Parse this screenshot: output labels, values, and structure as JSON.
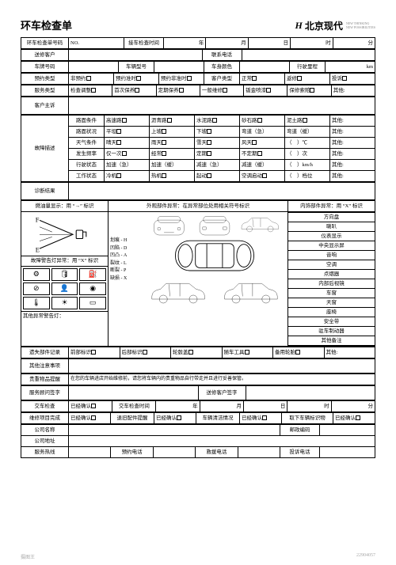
{
  "header": {
    "title": "环车检查单",
    "brand_cn": "北京现代",
    "brand_sub1": "NEW THINKING",
    "brand_sub2": "NEW POSSIBILITIES"
  },
  "r1": {
    "label": "环车检查单号码",
    "no": "NO.",
    "recv": "接车检查时间",
    "y": "年",
    "m": "月",
    "d": "日",
    "h": "时",
    "min": "分"
  },
  "r2": {
    "cust": "送修客户",
    "phone": "联系电话"
  },
  "r3": {
    "plate": "车牌号码",
    "model": "车辆型号",
    "color": "车身颜色",
    "mile": "行驶里程",
    "km": "km"
  },
  "r4": {
    "type": "预约类型",
    "o1": "非预约",
    "o2": "预约准时",
    "o3": "预约非准时",
    "o4": "客户类型",
    "o5": "正常",
    "o6": "返修",
    "o7": "投诉"
  },
  "r5": {
    "svc": "服务类型",
    "o1": "检查调整",
    "o2": "首次保养",
    "o3": "定期保养",
    "o4": "一般维修",
    "o5": "钣金喷漆",
    "o6": "保修索赔",
    "o7": "其他:"
  },
  "r6": {
    "label": "客户主诉"
  },
  "grid": {
    "rows": [
      {
        "h": "路面条件",
        "c": [
          "高速路",
          "沥青路",
          "水泥路",
          "砂石路",
          "泥土路",
          "其他:"
        ]
      },
      {
        "h": "路面状况",
        "c": [
          "平坦",
          "上坡",
          "下坡",
          "弯道（急）",
          "弯道（缓）",
          "其他:"
        ]
      },
      {
        "h": "天气条件",
        "c": [
          "晴天",
          "雨天",
          "雪天",
          "风天",
          "（　）℃",
          "其他:"
        ]
      },
      {
        "h": "发生频率",
        "c": [
          "仅一次",
          "经常",
          "定期",
          "不定期",
          "（　）次",
          "其他:"
        ]
      },
      {
        "h": "行驶状态",
        "c": [
          "加速（急）",
          "加速（缓）",
          "减速（急）",
          "减速（缓）",
          "（　）km/h",
          "其他:"
        ]
      },
      {
        "h": "工作状态",
        "c": [
          "冷机",
          "热机",
          "起动",
          "空调启动",
          "（　）档位",
          "其他:"
        ]
      }
    ],
    "side": "故障描述"
  },
  "diag": {
    "label": "诊断结果"
  },
  "mid": {
    "fuel": "燃油量显示：用 “→” 标识",
    "ext": "外观部件异常：在异常部位处用相关符号标识",
    "int": "内饰部件异常：用 “X” 标识",
    "warn": "故障警告灯异常：用 “X” 标识",
    "legend": [
      "划痕 - H",
      "凹陷 - D",
      "凹凸 - A",
      "裂纹 - L",
      "断裂 - P",
      "缺损 - X"
    ],
    "otherwarn": "其他异常警告灯：",
    "interior": [
      "方向盘",
      "喇叭",
      "仪表显示",
      "中央显示屏",
      "音响",
      "空调",
      "点烟器",
      "内部后视镜",
      "车窗",
      "天窗",
      "座椅",
      "安全带",
      "驻车制动器",
      "其他备注"
    ]
  },
  "lost": {
    "label": "遗失部件记录",
    "c": [
      "前部标识",
      "后部标识",
      "轮毂盖",
      "随车工具",
      "备用轮胎",
      "其他:"
    ]
  },
  "remind": {
    "label": "其他注意事项"
  },
  "val": {
    "label": "贵重物品提醒",
    "txt": "在您的车辆进店开始维修前，请您将车辆内的贵重物品自行带走并且进行妥善保管。"
  },
  "sign": {
    "c1": "服务顾问签字",
    "c2": "送修客户签字"
  },
  "deliver": {
    "label": "交车检查",
    "o1": "已经确认",
    "c2": "交车检查时间",
    "y": "年",
    "m": "月",
    "d": "日",
    "h": "时",
    "min": "分"
  },
  "fin": {
    "c1": "维修项目完成",
    "o1": "已经确认",
    "c2": "退旧配件提醒",
    "o2": "已经确认",
    "c3": "车辆清洁情况",
    "o3": "已经确认",
    "c4": "取下车辆标识物",
    "o4": "已经确认"
  },
  "co": {
    "name": "公司名称",
    "addr": "公司地址",
    "svc": "服务热线",
    "book": "预约电话",
    "rescue": "救援电话",
    "complain": "投诉电话",
    "post": "邮政编码"
  },
  "footer": {
    "l": "摄图王",
    "r": "22904057"
  }
}
